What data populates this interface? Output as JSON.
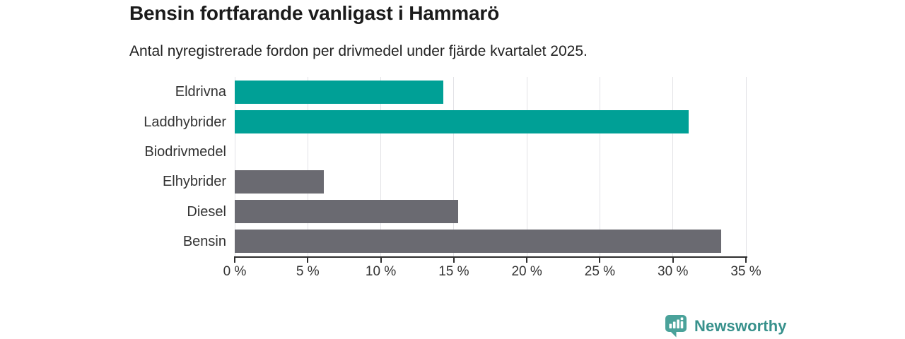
{
  "header": {
    "title": "Bensin fortfarande vanligast i Hammarö",
    "subtitle": "Antal nyregistrerade fordon per drivmedel under fjärde kvartalet 2025."
  },
  "chart_data": {
    "type": "bar",
    "orientation": "horizontal",
    "title": "Bensin fortfarande vanligast i Hammarö",
    "subtitle": "Antal nyregistrerade fordon per drivmedel under fjärde kvartalet 2025.",
    "categories": [
      "Eldrivna",
      "Laddhybrider",
      "Biodrivmedel",
      "Elhybrider",
      "Diesel",
      "Bensin"
    ],
    "values": [
      14.3,
      31.1,
      0,
      6.1,
      15.3,
      33.3
    ],
    "unit": "%",
    "bar_colors": [
      "#00a096",
      "#00a096",
      "none",
      "#6a6a71",
      "#6a6a71",
      "#6a6a71"
    ],
    "xlabel": "",
    "ylabel": "",
    "xlim": [
      0,
      35
    ],
    "x_ticks": [
      0,
      5,
      10,
      15,
      20,
      25,
      30,
      35
    ],
    "x_tick_labels": [
      "0 %",
      "5 %",
      "10 %",
      "15 %",
      "20 %",
      "25 %",
      "30 %",
      "35 %"
    ],
    "grid": true,
    "legend": false,
    "colors": {
      "highlight": "#00a096",
      "default": "#6a6a71",
      "gridline": "#e2e2e6",
      "axis": "#2e2e2e",
      "label_text": "#333333"
    }
  },
  "footer": {
    "brand": "Newsworthy",
    "logo_color": "#4aa29a",
    "text_color": "#38918c"
  }
}
